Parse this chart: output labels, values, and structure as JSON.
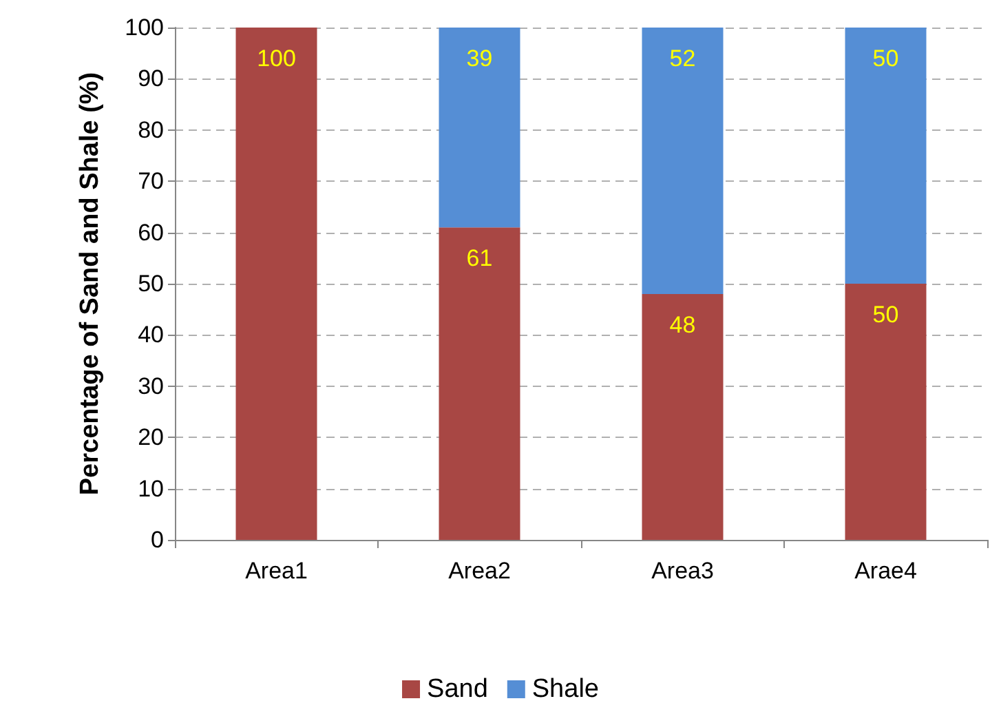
{
  "chart_data": {
    "type": "bar",
    "stacked": true,
    "ylabel": "Percentage of Sand and Shale (%)",
    "categories": [
      "Area1",
      "Area2",
      "Area3",
      "Arae4"
    ],
    "series": [
      {
        "name": "Sand",
        "color": "#a84744",
        "values": [
          100,
          61,
          48,
          50
        ],
        "value_labels": [
          "100",
          "61",
          "48",
          "50"
        ]
      },
      {
        "name": "Shale",
        "color": "#558ed5",
        "values": [
          0,
          39,
          52,
          50
        ],
        "value_labels": [
          null,
          "39",
          "52",
          "50"
        ]
      }
    ],
    "ylim": [
      0,
      100
    ],
    "yticks": [
      0,
      10,
      20,
      30,
      40,
      50,
      60,
      70,
      80,
      90,
      100
    ],
    "grid": "y",
    "legend": "bottom"
  }
}
